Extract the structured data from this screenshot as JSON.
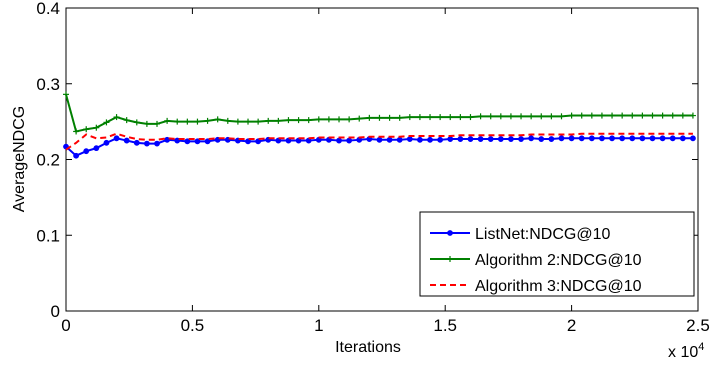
{
  "chart_data": {
    "type": "line",
    "title": "",
    "xlabel": "Iterations",
    "ylabel": "AverageNDCG",
    "x_multiplier_label": "x 10",
    "x_multiplier_exp": "4",
    "xlim": [
      0,
      2.5
    ],
    "ylim": [
      0,
      0.4
    ],
    "xticks": [
      0,
      0.5,
      1,
      1.5,
      2,
      2.5
    ],
    "xtick_labels": [
      "0",
      "0.5",
      "1",
      "1.5",
      "2",
      "2.5"
    ],
    "yticks": [
      0,
      0.1,
      0.2,
      0.3,
      0.4
    ],
    "ytick_labels": [
      "0",
      "0.1",
      "0.2",
      "0.3",
      "0.4"
    ],
    "grid": false,
    "legend_position": "bottom-right",
    "x": [
      0,
      0.04,
      0.08,
      0.12,
      0.16,
      0.2,
      0.24,
      0.28,
      0.32,
      0.36,
      0.4,
      0.44,
      0.48,
      0.52,
      0.56,
      0.6,
      0.64,
      0.68,
      0.72,
      0.76,
      0.8,
      0.84,
      0.88,
      0.92,
      0.96,
      1.0,
      1.04,
      1.08,
      1.12,
      1.16,
      1.2,
      1.24,
      1.28,
      1.32,
      1.36,
      1.4,
      1.44,
      1.48,
      1.52,
      1.56,
      1.6,
      1.64,
      1.68,
      1.72,
      1.76,
      1.8,
      1.84,
      1.88,
      1.92,
      1.96,
      2.0,
      2.04,
      2.08,
      2.12,
      2.16,
      2.2,
      2.24,
      2.28,
      2.32,
      2.36,
      2.4,
      2.44,
      2.48
    ],
    "series": [
      {
        "name": "ListNet:NDCG@10",
        "color": "#0000ff",
        "style": "solid-dot",
        "values": [
          0.217,
          0.205,
          0.211,
          0.215,
          0.222,
          0.228,
          0.225,
          0.222,
          0.221,
          0.221,
          0.226,
          0.225,
          0.224,
          0.224,
          0.224,
          0.226,
          0.226,
          0.225,
          0.224,
          0.224,
          0.226,
          0.225,
          0.225,
          0.225,
          0.225,
          0.226,
          0.226,
          0.225,
          0.225,
          0.226,
          0.227,
          0.226,
          0.226,
          0.226,
          0.227,
          0.226,
          0.226,
          0.226,
          0.227,
          0.227,
          0.227,
          0.227,
          0.227,
          0.227,
          0.227,
          0.227,
          0.228,
          0.227,
          0.227,
          0.228,
          0.228,
          0.228,
          0.228,
          0.228,
          0.228,
          0.228,
          0.228,
          0.228,
          0.228,
          0.228,
          0.228,
          0.228,
          0.228
        ]
      },
      {
        "name": "Algorithm 2:NDCG@10",
        "color": "#008000",
        "style": "solid-plus",
        "values": [
          0.286,
          0.237,
          0.24,
          0.242,
          0.249,
          0.256,
          0.252,
          0.249,
          0.247,
          0.247,
          0.251,
          0.25,
          0.25,
          0.25,
          0.251,
          0.253,
          0.251,
          0.25,
          0.25,
          0.25,
          0.251,
          0.251,
          0.252,
          0.252,
          0.252,
          0.253,
          0.253,
          0.253,
          0.253,
          0.254,
          0.255,
          0.255,
          0.255,
          0.255,
          0.256,
          0.256,
          0.256,
          0.256,
          0.256,
          0.256,
          0.256,
          0.257,
          0.257,
          0.257,
          0.257,
          0.257,
          0.257,
          0.257,
          0.257,
          0.257,
          0.258,
          0.258,
          0.258,
          0.258,
          0.258,
          0.258,
          0.258,
          0.258,
          0.258,
          0.258,
          0.258,
          0.258,
          0.258
        ]
      },
      {
        "name": "Algorithm 3:NDCG@10",
        "color": "#ff0000",
        "style": "dashed",
        "values": [
          0.213,
          0.222,
          0.233,
          0.228,
          0.229,
          0.234,
          0.23,
          0.227,
          0.226,
          0.226,
          0.228,
          0.227,
          0.227,
          0.227,
          0.227,
          0.228,
          0.228,
          0.227,
          0.227,
          0.227,
          0.228,
          0.228,
          0.228,
          0.228,
          0.228,
          0.229,
          0.229,
          0.229,
          0.229,
          0.229,
          0.23,
          0.23,
          0.23,
          0.23,
          0.231,
          0.231,
          0.231,
          0.231,
          0.231,
          0.232,
          0.232,
          0.232,
          0.232,
          0.232,
          0.232,
          0.232,
          0.233,
          0.233,
          0.233,
          0.233,
          0.233,
          0.234,
          0.234,
          0.234,
          0.234,
          0.234,
          0.234,
          0.234,
          0.234,
          0.234,
          0.234,
          0.234,
          0.234
        ]
      }
    ]
  }
}
